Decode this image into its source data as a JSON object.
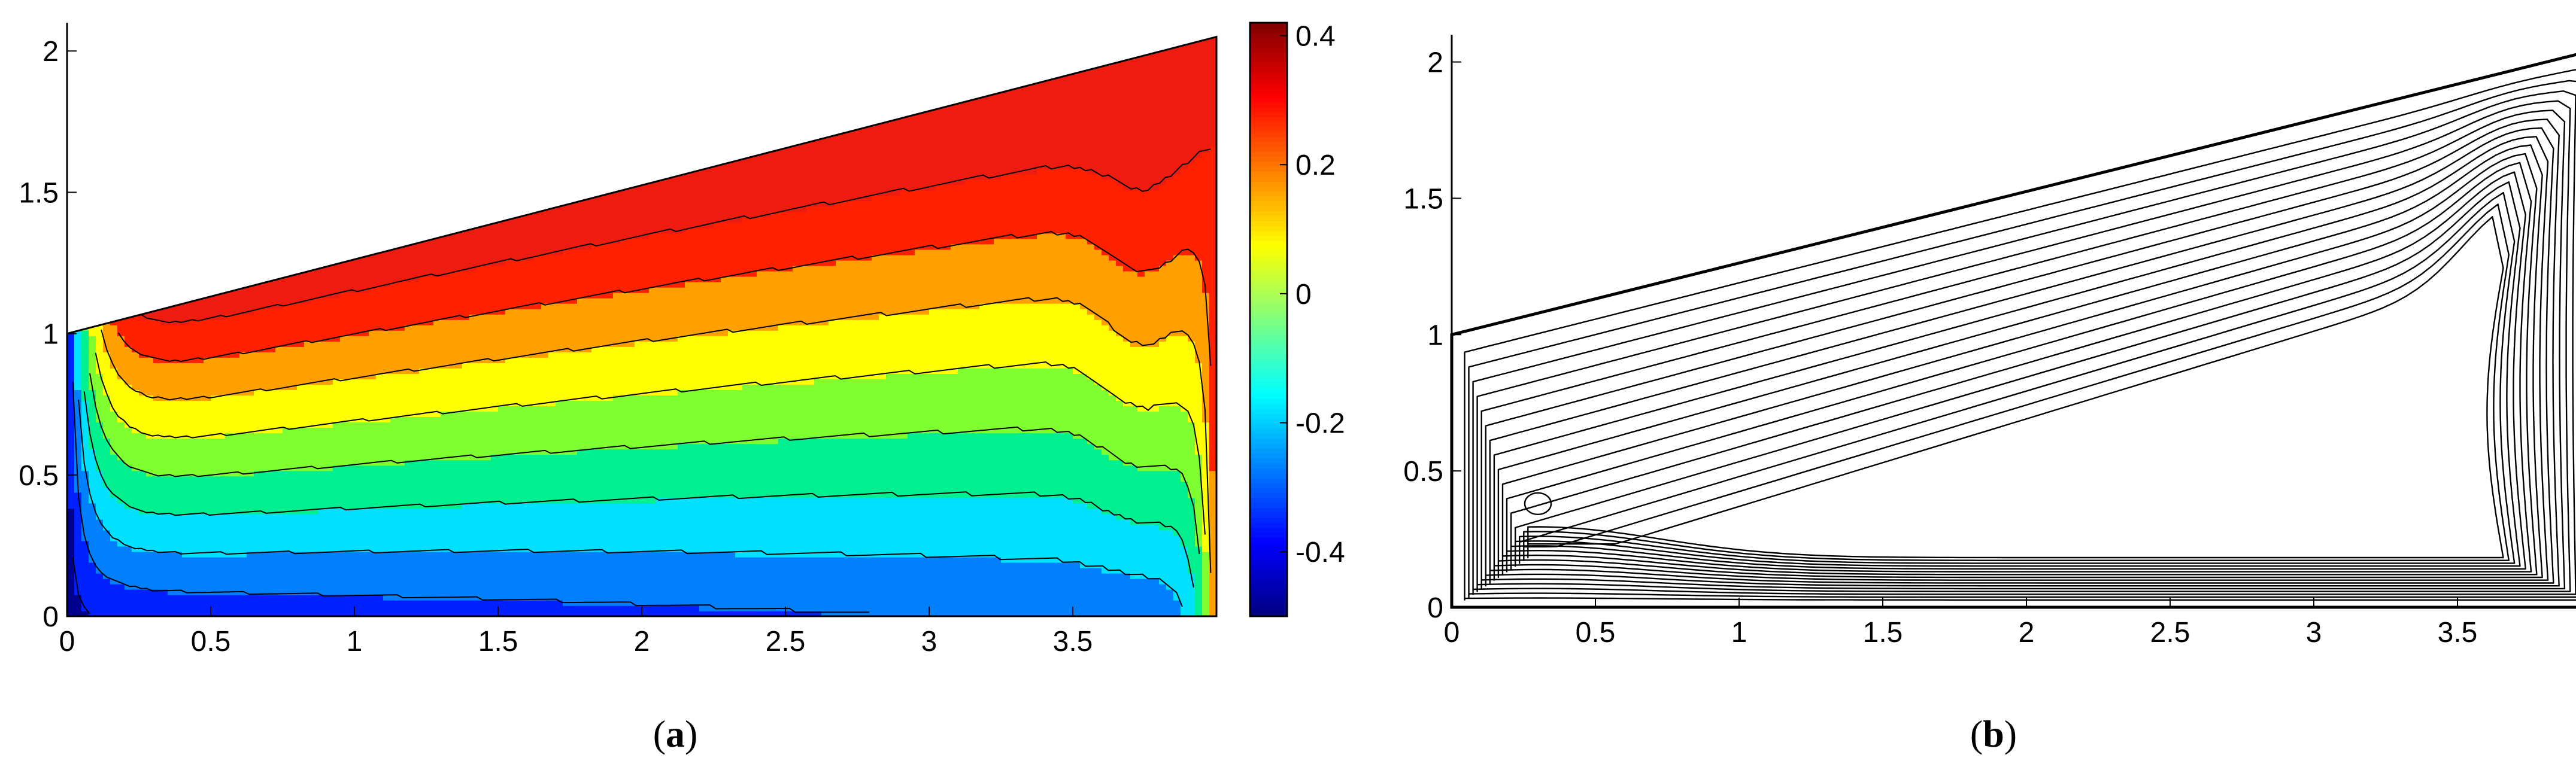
{
  "figure": {
    "panel_a_label": {
      "open": "(",
      "letter": "a",
      "close": ")"
    },
    "panel_b_label": {
      "open": "(",
      "letter": "b",
      "close": ")"
    }
  },
  "chart_data": [
    {
      "type": "heatmap",
      "title": "",
      "xlabel": "",
      "ylabel": "",
      "xlim": [
        0,
        4
      ],
      "ylim": [
        0,
        2.1
      ],
      "x_ticks": [
        0,
        0.5,
        1,
        1.5,
        2,
        2.5,
        3,
        3.5
      ],
      "x_tick_labels": [
        "0",
        "0.5",
        "1",
        "1.5",
        "2",
        "2.5",
        "3",
        "3.5"
      ],
      "y_ticks": [
        0,
        0.5,
        1,
        1.5,
        2
      ],
      "y_tick_labels": [
        "0",
        "0.5",
        "1",
        "1.5",
        "2"
      ],
      "domain_polygon": [
        [
          0,
          0
        ],
        [
          4,
          0
        ],
        [
          4,
          2.05
        ],
        [
          0,
          1
        ]
      ],
      "colormap": "jet",
      "colorbar": {
        "range": [
          -0.5,
          0.42
        ],
        "ticks": [
          0.4,
          0.2,
          0,
          -0.2,
          -0.4
        ],
        "tick_labels": [
          "0.4",
          "0.2",
          "0",
          "-0.2",
          "-0.4"
        ],
        "placement": "right"
      },
      "contour_levels": [
        -0.45,
        -0.35,
        -0.25,
        -0.15,
        -0.05,
        0.05,
        0.15,
        0.25,
        0.35
      ],
      "fill_colors": [
        "#00008f",
        "#0020ff",
        "#0080ff",
        "#00e0ff",
        "#00f090",
        "#80ff30",
        "#ffff00",
        "#ffa000",
        "#ff2000",
        "#ee1c10",
        "#900000"
      ],
      "field_description": "temperature-like field: low near lower-left corner, high near upper-right corner"
    },
    {
      "type": "line",
      "title": "",
      "xlabel": "",
      "ylabel": "",
      "xlim": [
        0,
        4
      ],
      "ylim": [
        0,
        2.1
      ],
      "x_ticks": [
        0,
        0.5,
        1,
        1.5,
        2,
        2.5,
        3,
        3.5
      ],
      "x_tick_labels": [
        "0",
        "0.5",
        "1",
        "1.5",
        "2",
        "2.5",
        "3",
        "3.5"
      ],
      "y_ticks": [
        0,
        0.5,
        1,
        1.5,
        2
      ],
      "y_tick_labels": [
        "0",
        "0.5",
        "1",
        "1.5",
        "2"
      ],
      "domain_polygon": [
        [
          0,
          0
        ],
        [
          4,
          0
        ],
        [
          4,
          2.05
        ],
        [
          0,
          1
        ]
      ],
      "contour_count": 16,
      "line_color": "#000000",
      "vortex_center": [
        0.3,
        0.38
      ],
      "plume_tip": [
        3.7,
        1.05
      ],
      "field_description": "streamlines, nested closed curves following the trapezoidal cavity"
    }
  ]
}
